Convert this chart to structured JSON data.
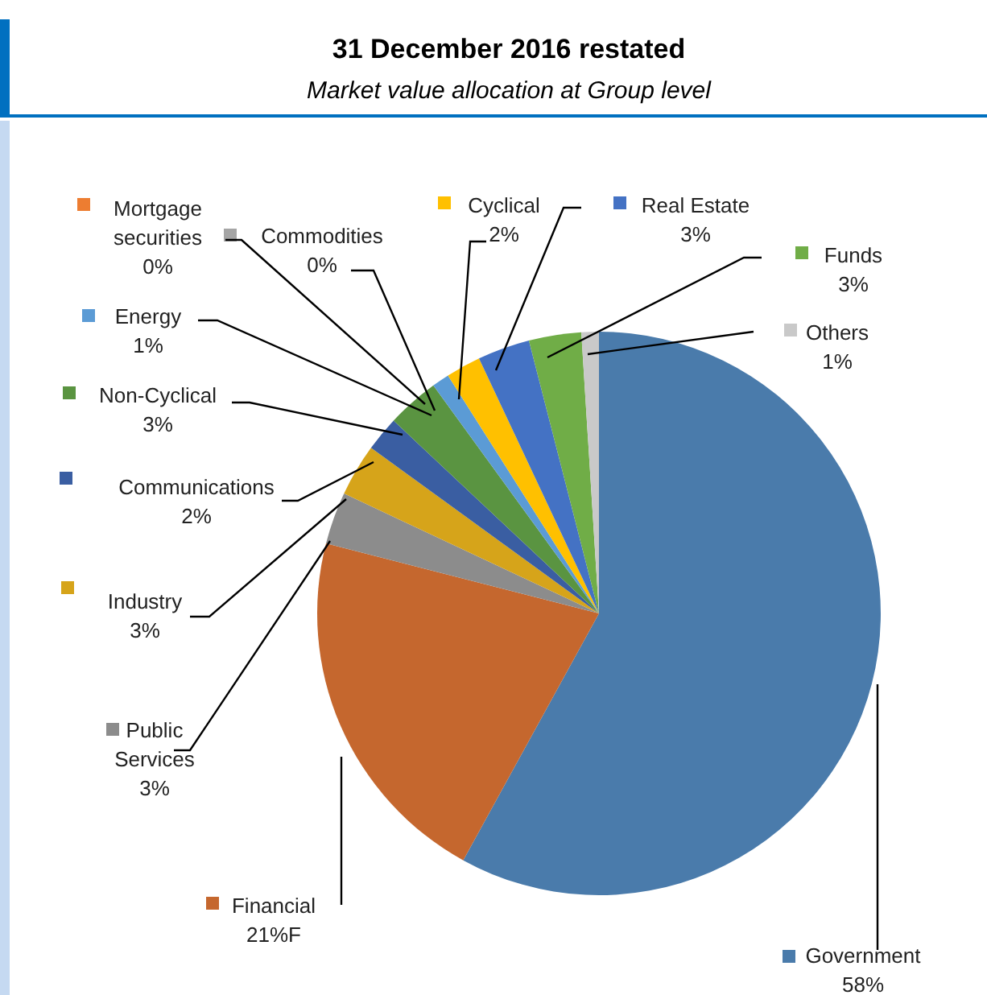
{
  "chart_data": {
    "type": "pie",
    "title": "31 December 2016 restated",
    "subtitle": "Market value allocation at Group level",
    "categories": [
      "Government",
      "Financial",
      "Public Services",
      "Industry",
      "Communications",
      "Non-Cyclical",
      "Energy",
      "Commodities",
      "Mortgage securities",
      "Cyclical",
      "Real Estate",
      "Funds",
      "Others"
    ],
    "values": [
      58,
      21,
      3,
      3,
      2,
      3,
      1,
      0,
      0,
      2,
      3,
      3,
      1
    ],
    "value_labels": [
      "58%",
      "21%F",
      "3%",
      "3%",
      "2%",
      "3%",
      "1%",
      "0%",
      "0%",
      "2%",
      "3%",
      "3%",
      "1%"
    ],
    "legend": "left",
    "colors": [
      "#4a7bab",
      "#c5672e",
      "#8c8c8c",
      "#d6a41a",
      "#3a5ea2",
      "#5a9441",
      "#5b9bd5",
      "#a5a5a5",
      "#ed7d31",
      "#ffc000",
      "#4472c4",
      "#70ad47",
      "#c9c9c9"
    ]
  }
}
